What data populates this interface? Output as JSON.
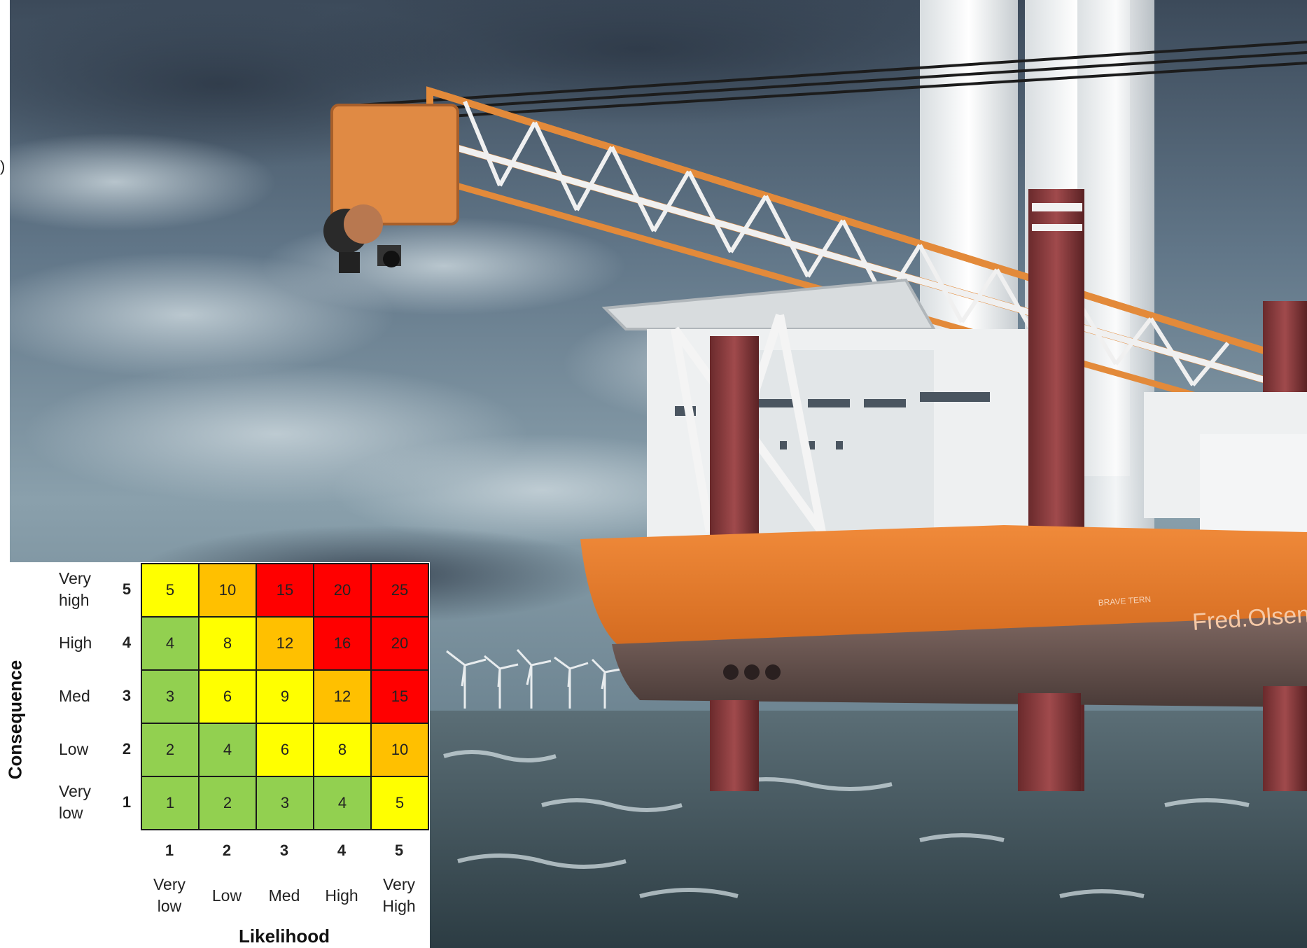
{
  "photo": {
    "description_icon": "offshore-crane-vessel-image",
    "hull_text": "Fred.Olsen Windcarrier",
    "ship_name": "BRAVE TERN"
  },
  "edge_mark": ")",
  "risk_matrix": {
    "y_title": "Consequence",
    "x_title": "Likelihood",
    "rows": [
      {
        "label": "Very high",
        "num": "5",
        "cells": [
          "5",
          "10",
          "15",
          "20",
          "25"
        ]
      },
      {
        "label": "High",
        "num": "4",
        "cells": [
          "4",
          "8",
          "12",
          "16",
          "20"
        ]
      },
      {
        "label": "Med",
        "num": "3",
        "cells": [
          "3",
          "6",
          "9",
          "12",
          "15"
        ]
      },
      {
        "label": "Low",
        "num": "2",
        "cells": [
          "2",
          "4",
          "6",
          "8",
          "10"
        ]
      },
      {
        "label": "Very low",
        "num": "1",
        "cells": [
          "1",
          "2",
          "3",
          "4",
          "5"
        ]
      }
    ],
    "columns": [
      {
        "num": "1",
        "label": "Very low"
      },
      {
        "num": "2",
        "label": "Low"
      },
      {
        "num": "3",
        "label": "Med"
      },
      {
        "num": "4",
        "label": "High"
      },
      {
        "num": "5",
        "label": "Very High"
      }
    ],
    "colors": {
      "green": "#92d050",
      "yellow": "#ffff00",
      "orange": "#ffc000",
      "red": "#ff0000"
    },
    "cell_colors": [
      [
        "yellow",
        "orange",
        "red",
        "red",
        "red"
      ],
      [
        "green",
        "yellow",
        "orange",
        "red",
        "red"
      ],
      [
        "green",
        "yellow",
        "yellow",
        "orange",
        "red"
      ],
      [
        "green",
        "green",
        "yellow",
        "yellow",
        "orange"
      ],
      [
        "green",
        "green",
        "green",
        "green",
        "yellow"
      ]
    ]
  }
}
